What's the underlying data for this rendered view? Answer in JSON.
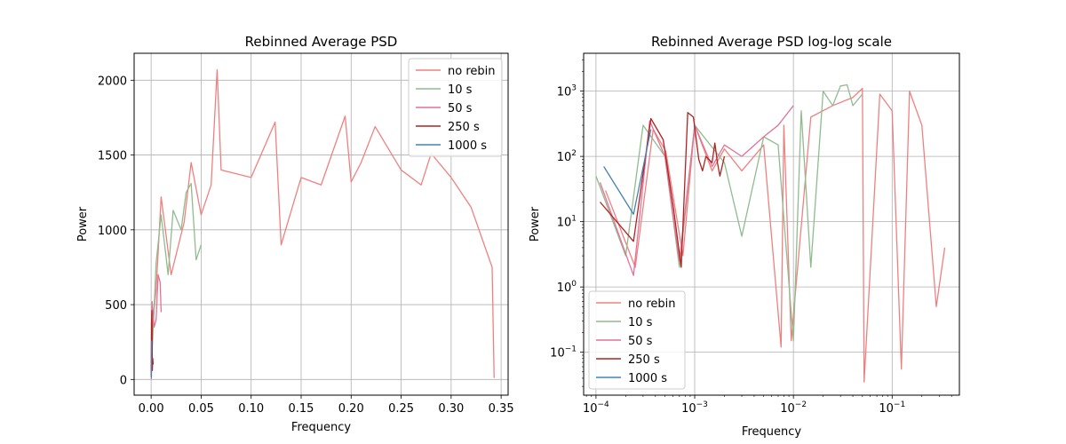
{
  "chart_data": [
    {
      "type": "line",
      "title": "Rebinned Average PSD",
      "xlabel": "Frequency",
      "ylabel": "Power",
      "xlim": [
        -0.017,
        0.357
      ],
      "ylim": [
        -105,
        2180
      ],
      "x_scale": "linear",
      "y_scale": "linear",
      "grid": true,
      "legend_position": "top-right",
      "xticks": [
        0.0,
        0.05,
        0.1,
        0.15,
        0.2,
        0.25,
        0.3,
        0.35
      ],
      "xtick_labels": [
        "0.00",
        "0.05",
        "0.10",
        "0.15",
        "0.20",
        "0.25",
        "0.30",
        "0.35"
      ],
      "yticks": [
        0,
        500,
        1000,
        1500,
        2000
      ],
      "ytick_labels": [
        "0",
        "500",
        "1000",
        "1500",
        "2000"
      ],
      "series": [
        {
          "name": "no rebin",
          "color": "#f08080",
          "x": [
            0.0001,
            0.002,
            0.005,
            0.01,
            0.02,
            0.033,
            0.04,
            0.05,
            0.06,
            0.066,
            0.07,
            0.1,
            0.124,
            0.13,
            0.15,
            0.17,
            0.194,
            0.2,
            0.21,
            0.224,
            0.25,
            0.27,
            0.28,
            0.3,
            0.32,
            0.341,
            0.343
          ],
          "values": [
            30,
            400,
            600,
            1220,
            700,
            1050,
            1450,
            1100,
            1300,
            2070,
            1400,
            1350,
            1720,
            900,
            1350,
            1300,
            1760,
            1320,
            1450,
            1690,
            1400,
            1300,
            1510,
            1350,
            1150,
            750,
            10
          ]
        },
        {
          "name": "10 s",
          "color": "#8fbc8f",
          "x": [
            0.0001,
            0.005,
            0.01,
            0.017,
            0.022,
            0.03,
            0.035,
            0.04,
            0.045,
            0.05
          ],
          "values": [
            50,
            780,
            1100,
            700,
            1130,
            1000,
            1250,
            1310,
            800,
            900
          ]
        },
        {
          "name": "50 s",
          "color": "#e37296",
          "x": [
            0.0002,
            0.001,
            0.003,
            0.005,
            0.007,
            0.009,
            0.01
          ],
          "values": [
            2,
            520,
            350,
            400,
            700,
            650,
            450
          ]
        },
        {
          "name": "250 s",
          "color": "#b22222",
          "x": [
            0.0001,
            0.0004,
            0.0008,
            0.0012,
            0.0016,
            0.002
          ],
          "values": [
            20,
            380,
            460,
            60,
            140,
            100
          ]
        },
        {
          "name": "1000 s",
          "color": "#4682b4",
          "x": [
            0.0001,
            0.00025,
            0.0004
          ],
          "values": [
            70,
            14,
            260
          ]
        }
      ]
    },
    {
      "type": "line",
      "title": "Rebinned Average PSD log-log scale",
      "xlabel": "Frequency",
      "ylabel": "Power",
      "xlim": [
        7.5e-05,
        0.48
      ],
      "ylim": [
        0.022,
        3800
      ],
      "x_scale": "log",
      "y_scale": "log",
      "grid": true,
      "legend_position": "bottom-left",
      "xticks": [
        0.0001,
        0.001,
        0.01,
        0.1
      ],
      "xtick_labels": [
        "10^-4",
        "10^-3",
        "10^-2",
        "10^-1"
      ],
      "yticks": [
        0.1,
        1,
        10,
        100,
        1000
      ],
      "ytick_labels": [
        "10^-1",
        "10^0",
        "10^1",
        "10^2",
        "10^3"
      ],
      "series": [
        {
          "name": "no rebin",
          "color": "#f08080",
          "x": [
            0.000125,
            0.00025,
            0.00038,
            0.00051,
            0.00076,
            0.001,
            0.0015,
            0.002,
            0.003,
            0.005,
            0.0075,
            0.008,
            0.0095,
            0.015,
            0.025,
            0.04,
            0.05,
            0.052,
            0.075,
            0.1,
            0.124,
            0.15,
            0.2,
            0.28,
            0.341
          ],
          "values": [
            30,
            2,
            260,
            120,
            3,
            300,
            60,
            130,
            60,
            150,
            0.12,
            300,
            0.15,
            400,
            600,
            800,
            1100,
            0.035,
            900,
            500,
            0.055,
            1000,
            300,
            0.5,
            4
          ]
        },
        {
          "name": "10 s",
          "color": "#8fbc8f",
          "x": [
            0.0001,
            0.0002,
            0.0003,
            0.0005,
            0.0007,
            0.001,
            0.002,
            0.003,
            0.005,
            0.007,
            0.01,
            0.012,
            0.015,
            0.02,
            0.025,
            0.03,
            0.035,
            0.04,
            0.05
          ],
          "values": [
            50,
            3,
            300,
            100,
            2,
            300,
            80,
            6,
            200,
            150,
            0.15,
            500,
            2,
            1000,
            600,
            1200,
            1250,
            600,
            900
          ]
        },
        {
          "name": "50 s",
          "color": "#e37296",
          "x": [
            0.00011,
            0.00024,
            0.00035,
            0.0005,
            0.0007,
            0.001,
            0.0015,
            0.002,
            0.003,
            0.005,
            0.007,
            0.01
          ],
          "values": [
            40,
            1.5,
            350,
            100,
            2.5,
            300,
            70,
            150,
            100,
            200,
            300,
            600
          ]
        },
        {
          "name": "250 s",
          "color": "#b22222",
          "x": [
            0.00011,
            0.00024,
            0.00036,
            0.00048,
            0.00061,
            0.00073,
            0.00085,
            0.00097,
            0.0011,
            0.0012,
            0.0013,
            0.0015,
            0.0016,
            0.0017,
            0.0018,
            0.002
          ],
          "values": [
            20,
            5,
            380,
            180,
            16,
            2,
            470,
            400,
            90,
            60,
            100,
            80,
            160,
            80,
            50,
            100
          ]
        },
        {
          "name": "1000 s",
          "color": "#4682b4",
          "x": [
            0.00012,
            0.00024,
            0.00036
          ],
          "values": [
            70,
            13,
            260
          ]
        }
      ]
    }
  ]
}
